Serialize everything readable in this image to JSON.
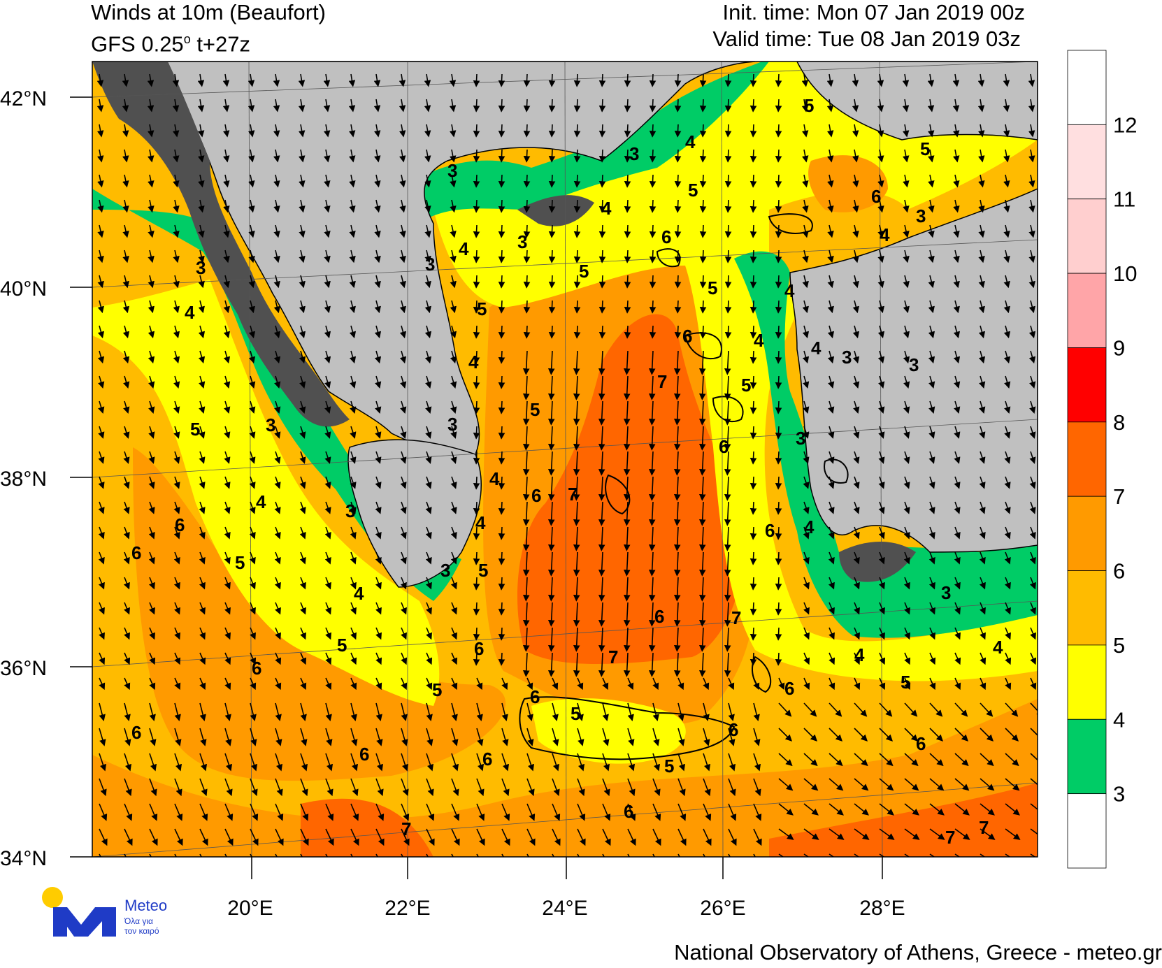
{
  "header": {
    "title": "Winds at 10m (Beaufort)",
    "model": "GFS 0.25",
    "degree_mark": "o",
    "lead": " t+27z",
    "init_time": "Init. time: Mon 07 Jan 2019 00z",
    "valid_time": "Valid time: Tue 08 Jan 2019 03z"
  },
  "axes": {
    "lat_labels": [
      "42°N",
      "40°N",
      "38°N",
      "36°N",
      "34°N"
    ],
    "lat_values": [
      42,
      40,
      38,
      36,
      34
    ],
    "lon_labels": [
      "20°E",
      "22°E",
      "24°E",
      "26°E",
      "28°E"
    ],
    "lon_values": [
      20,
      22,
      24,
      26,
      28
    ],
    "lon_range": [
      18,
      30
    ],
    "lat_range": [
      33.9,
      42.4
    ]
  },
  "legend": {
    "labels": [
      "12",
      "11",
      "10",
      "9",
      "8",
      "7",
      "6",
      "5",
      "4",
      "3"
    ],
    "colors": [
      "#ffffff",
      "#ffdfe0",
      "#ffcfcf",
      "#ffa5a8",
      "#ff0000",
      "#ff6600",
      "#ff9a00",
      "#ffbb00",
      "#ffff00",
      "#00cc66",
      "#ffffff"
    ]
  },
  "colors": {
    "land": "#c0c0c0",
    "land_dark": "#505050",
    "bf3": "#00cc66",
    "bf4": "#ffff00",
    "bf5": "#ffbb00",
    "bf6": "#ff9a00",
    "bf7": "#ff6600",
    "border": "#000000"
  },
  "contour_labels": [
    "3",
    "4",
    "5",
    "6",
    "7"
  ],
  "logo": {
    "word": "Meteo",
    "tagline_1": "Όλα για",
    "tagline_2": "τον καιρό"
  },
  "footer": "National Observatory of Athens, Greece - meteo.gr"
}
